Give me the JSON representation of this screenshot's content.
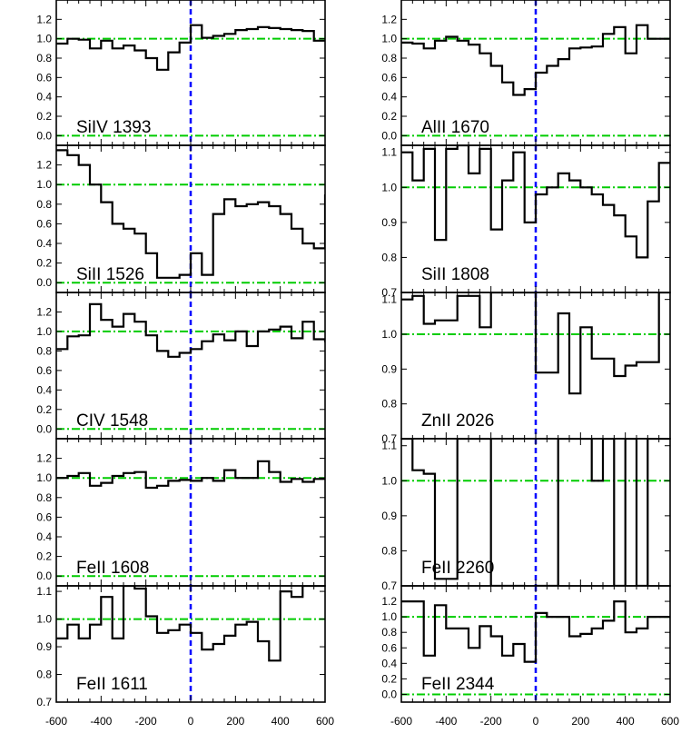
{
  "chart_data": {
    "type": "line",
    "layout": {
      "columns": 2,
      "rows": 5,
      "shared_x": true
    },
    "xlim": [
      -600,
      600
    ],
    "x_ticks": [
      -600,
      -400,
      -200,
      0,
      200,
      400,
      600
    ],
    "x_tick_labels": [
      "-600",
      "-400",
      "-200",
      "0",
      "200",
      "400",
      "600"
    ],
    "reference_lines": {
      "zero_velocity": 0,
      "continuum": 1.0,
      "zero_flux": 0.0
    },
    "colors": {
      "spectrum": "#000000",
      "reference_horizontal": "#00cc00",
      "reference_vertical": "#0000ff"
    },
    "panels": [
      {
        "label": "SiIV 1393",
        "ylim": [
          -0.1,
          1.4
        ],
        "y_ticks": [
          0.0,
          0.2,
          0.4,
          0.6,
          0.8,
          1.0,
          1.2
        ],
        "y_tick_labels": [
          "0.0",
          "0.2",
          "0.4",
          "0.6",
          "0.8",
          "1.0",
          "1.2"
        ],
        "hlines": [
          0.0,
          1.0
        ],
        "x": [
          -600,
          -550,
          -500,
          -450,
          -400,
          -350,
          -300,
          -250,
          -200,
          -150,
          -100,
          -50,
          0,
          50,
          100,
          150,
          200,
          250,
          300,
          350,
          400,
          450,
          500,
          550,
          600
        ],
        "y": [
          0.95,
          1.0,
          0.99,
          0.9,
          0.98,
          0.9,
          0.93,
          0.88,
          0.8,
          0.68,
          0.86,
          0.96,
          1.14,
          1.01,
          1.03,
          1.05,
          1.09,
          1.1,
          1.12,
          1.11,
          1.1,
          1.09,
          1.08,
          0.98,
          0.98
        ]
      },
      {
        "label": "AlII 1670",
        "ylim": [
          -0.1,
          1.4
        ],
        "y_ticks": [
          0.0,
          0.2,
          0.4,
          0.6,
          0.8,
          1.0,
          1.2
        ],
        "y_tick_labels": [
          "0.0",
          "0.2",
          "0.4",
          "0.6",
          "0.8",
          "1.0",
          "1.2"
        ],
        "hlines": [
          0.0,
          1.0
        ],
        "x": [
          -600,
          -550,
          -500,
          -450,
          -400,
          -350,
          -300,
          -250,
          -200,
          -150,
          -100,
          -50,
          0,
          50,
          100,
          150,
          200,
          250,
          300,
          350,
          400,
          450,
          500,
          550,
          600
        ],
        "y": [
          0.96,
          0.95,
          0.9,
          0.98,
          1.02,
          0.98,
          0.94,
          0.85,
          0.72,
          0.55,
          0.42,
          0.48,
          0.65,
          0.72,
          0.79,
          0.9,
          0.91,
          0.92,
          1.05,
          1.12,
          0.85,
          1.14,
          1.0,
          1.0,
          1.0
        ]
      },
      {
        "label": "SiII 1526",
        "ylim": [
          -0.1,
          1.4
        ],
        "y_ticks": [
          0.0,
          0.2,
          0.4,
          0.6,
          0.8,
          1.0,
          1.2
        ],
        "y_tick_labels": [
          "0.0",
          "0.2",
          "0.4",
          "0.6",
          "0.8",
          "1.0",
          "1.2"
        ],
        "hlines": [
          0.0,
          1.0
        ],
        "x": [
          -600,
          -550,
          -500,
          -450,
          -400,
          -350,
          -300,
          -250,
          -200,
          -150,
          -100,
          -50,
          0,
          50,
          100,
          150,
          200,
          250,
          300,
          350,
          400,
          450,
          500,
          550,
          600
        ],
        "y": [
          1.35,
          1.3,
          1.2,
          1.0,
          0.82,
          0.6,
          0.55,
          0.5,
          0.3,
          0.05,
          0.05,
          0.08,
          0.3,
          0.08,
          0.7,
          0.85,
          0.78,
          0.8,
          0.82,
          0.78,
          0.7,
          0.55,
          0.4,
          0.35,
          0.9
        ]
      },
      {
        "label": "SiII 1808",
        "ylim": [
          0.7,
          1.12
        ],
        "y_ticks": [
          0.7,
          0.8,
          0.9,
          1.0,
          1.1
        ],
        "y_tick_labels": [
          "0.7",
          "0.8",
          "0.9",
          "1.0",
          "1.1"
        ],
        "hlines": [
          1.0
        ],
        "x": [
          -600,
          -550,
          -500,
          -450,
          -400,
          -350,
          -300,
          -250,
          -200,
          -150,
          -100,
          -50,
          0,
          50,
          100,
          150,
          200,
          250,
          300,
          350,
          400,
          450,
          500,
          550,
          600
        ],
        "y": [
          1.1,
          1.02,
          1.11,
          0.85,
          1.11,
          1.12,
          1.04,
          1.11,
          0.88,
          1.02,
          1.1,
          0.9,
          0.98,
          1.0,
          1.04,
          1.02,
          1.0,
          0.98,
          0.95,
          0.92,
          0.86,
          0.8,
          0.96,
          1.07,
          1.07
        ]
      },
      {
        "label": "CIV 1548",
        "ylim": [
          -0.1,
          1.4
        ],
        "y_ticks": [
          0.0,
          0.2,
          0.4,
          0.6,
          0.8,
          1.0,
          1.2
        ],
        "y_tick_labels": [
          "0.0",
          "0.2",
          "0.4",
          "0.6",
          "0.8",
          "1.0",
          "1.2"
        ],
        "hlines": [
          0.0,
          1.0
        ],
        "x": [
          -600,
          -550,
          -500,
          -450,
          -400,
          -350,
          -300,
          -250,
          -200,
          -150,
          -100,
          -50,
          0,
          50,
          100,
          150,
          200,
          250,
          300,
          350,
          400,
          450,
          500,
          550,
          600
        ],
        "y": [
          0.82,
          0.95,
          0.96,
          1.28,
          1.12,
          1.05,
          1.18,
          1.1,
          0.96,
          0.8,
          0.74,
          0.78,
          0.82,
          0.9,
          0.97,
          0.91,
          1.0,
          0.85,
          1.0,
          1.02,
          1.05,
          0.93,
          1.1,
          0.92,
          0.89
        ]
      },
      {
        "label": "ZnII 2026",
        "ylim": [
          0.7,
          1.12
        ],
        "y_ticks": [
          0.7,
          0.8,
          0.9,
          1.0,
          1.1
        ],
        "y_tick_labels": [
          "0.7",
          "0.8",
          "0.9",
          "1.0",
          "1.1"
        ],
        "hlines": [
          1.0
        ],
        "x": [
          -600,
          -550,
          -500,
          -450,
          -400,
          -350,
          -300,
          -250,
          -200,
          -150,
          -100,
          -50,
          0,
          50,
          100,
          150,
          200,
          250,
          300,
          350,
          400,
          450,
          500,
          550,
          600
        ],
        "y": [
          1.1,
          1.11,
          1.03,
          1.04,
          1.04,
          1.11,
          1.11,
          1.02,
          1.12,
          1.12,
          1.12,
          1.12,
          0.89,
          0.89,
          1.06,
          0.83,
          1.02,
          0.93,
          0.93,
          0.88,
          0.91,
          0.92,
          0.92,
          1.12,
          1.12
        ]
      },
      {
        "label": "FeII 1608",
        "ylim": [
          -0.1,
          1.4
        ],
        "y_ticks": [
          0.0,
          0.2,
          0.4,
          0.6,
          0.8,
          1.0,
          1.2
        ],
        "y_tick_labels": [
          "0.0",
          "0.2",
          "0.4",
          "0.6",
          "0.8",
          "1.0",
          "1.2"
        ],
        "hlines": [
          0.0,
          1.0
        ],
        "x": [
          -600,
          -550,
          -500,
          -450,
          -400,
          -350,
          -300,
          -250,
          -200,
          -150,
          -100,
          -50,
          0,
          50,
          100,
          150,
          200,
          250,
          300,
          350,
          400,
          450,
          500,
          550,
          600
        ],
        "y": [
          1.0,
          1.02,
          1.05,
          0.92,
          0.95,
          1.02,
          1.05,
          1.06,
          0.9,
          0.92,
          0.97,
          0.98,
          0.97,
          1.0,
          0.97,
          1.08,
          1.0,
          1.0,
          1.17,
          1.06,
          0.96,
          0.99,
          0.96,
          0.99,
          0.99
        ]
      },
      {
        "label": "FeII 2260",
        "ylim": [
          0.7,
          1.12
        ],
        "y_ticks": [
          0.7,
          0.8,
          0.9,
          1.0,
          1.1
        ],
        "y_tick_labels": [
          "0.7",
          "0.8",
          "0.9",
          "1.0",
          "1.1"
        ],
        "hlines": [
          1.0
        ],
        "x": [
          -600,
          -550,
          -500,
          -450,
          -400,
          -350,
          -300,
          -250,
          -200,
          -150,
          -100,
          -50,
          0,
          50,
          100,
          150,
          200,
          250,
          300,
          350,
          400,
          450,
          500,
          550,
          600
        ],
        "y": [
          1.12,
          1.03,
          1.02,
          0.72,
          0.72,
          1.12,
          1.12,
          1.12,
          0.7,
          0.7,
          0.7,
          0.69,
          0.7,
          0.7,
          1.12,
          1.12,
          1.12,
          1.0,
          1.12,
          0.7,
          1.12,
          0.7,
          1.12,
          1.12,
          1.12
        ]
      },
      {
        "label": "FeII 1611",
        "ylim": [
          0.7,
          1.12
        ],
        "y_ticks": [
          0.7,
          0.8,
          0.9,
          1.0,
          1.1
        ],
        "y_tick_labels": [
          "0.7",
          "0.8",
          "0.9",
          "1.0",
          "1.1"
        ],
        "hlines": [
          1.0
        ],
        "x": [
          -600,
          -550,
          -500,
          -450,
          -400,
          -350,
          -300,
          -250,
          -200,
          -150,
          -100,
          -50,
          0,
          50,
          100,
          150,
          200,
          250,
          300,
          350,
          400,
          450,
          500,
          550,
          600
        ],
        "y": [
          0.93,
          0.98,
          0.93,
          0.98,
          1.08,
          0.93,
          1.12,
          1.11,
          1.01,
          0.95,
          0.96,
          0.98,
          0.95,
          0.89,
          0.91,
          0.94,
          0.98,
          0.99,
          0.92,
          0.85,
          1.1,
          1.08,
          1.12,
          1.12,
          1.12
        ]
      },
      {
        "label": "FeII 2344",
        "ylim": [
          -0.1,
          1.4
        ],
        "y_ticks": [
          0.0,
          0.2,
          0.4,
          0.6,
          0.8,
          1.0,
          1.2
        ],
        "y_tick_labels": [
          "0.0",
          "0.2",
          "0.4",
          "0.6",
          "0.8",
          "1.0",
          "1.2"
        ],
        "hlines": [
          0.0,
          1.0
        ],
        "x": [
          -600,
          -550,
          -500,
          -450,
          -400,
          -350,
          -300,
          -250,
          -200,
          -150,
          -100,
          -50,
          0,
          50,
          100,
          150,
          200,
          250,
          300,
          350,
          400,
          450,
          500,
          550,
          600
        ],
        "y": [
          1.2,
          1.2,
          0.5,
          1.15,
          0.85,
          0.85,
          0.6,
          0.88,
          0.75,
          0.5,
          0.65,
          0.42,
          1.05,
          1.0,
          1.0,
          0.75,
          0.78,
          0.85,
          0.95,
          1.2,
          0.8,
          0.85,
          1.0,
          1.0,
          1.0
        ]
      }
    ]
  }
}
